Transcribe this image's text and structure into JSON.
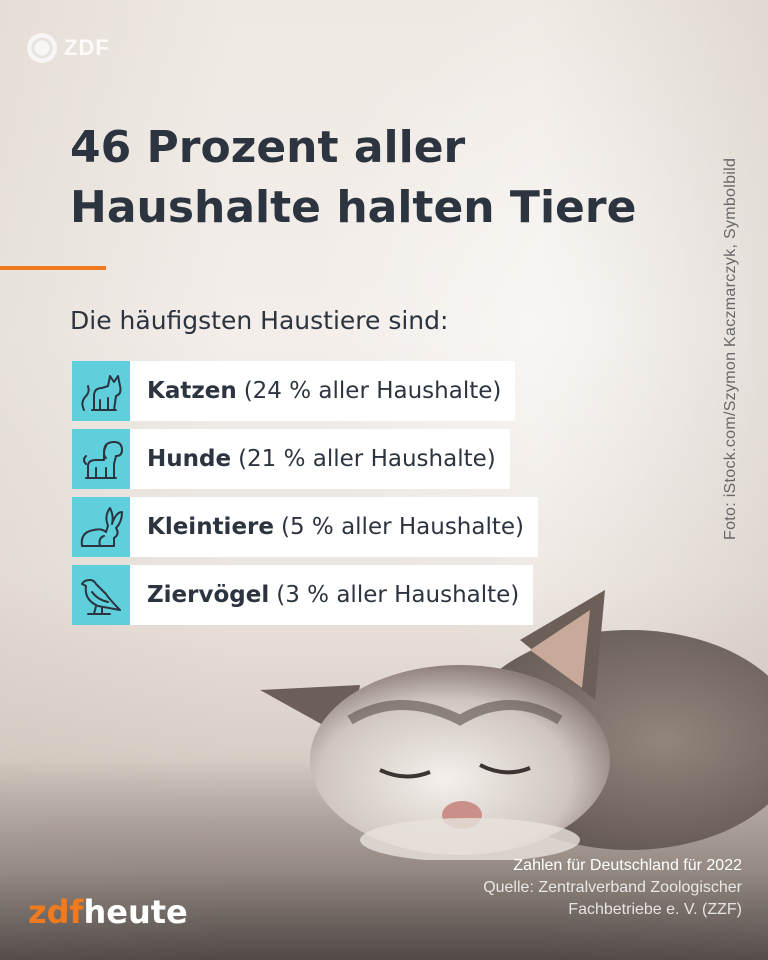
{
  "watermark": {
    "brand": "ZDF"
  },
  "headline": {
    "line1": "46 Prozent aller",
    "line2": "Haushalte halten Tiere"
  },
  "subhead": "Die häufigsten Haustiere sind:",
  "pets": [
    {
      "name": "Katzen",
      "detail": "(24 % aller Haushalte)",
      "icon": "cat-icon"
    },
    {
      "name": "Hunde",
      "detail": "(21 % aller Haushalte)",
      "icon": "dog-icon"
    },
    {
      "name": "Kleintiere",
      "detail": "(5 % aller Haushalte)",
      "icon": "rabbit-icon"
    },
    {
      "name": "Ziervögel",
      "detail": "(3 % aller Haushalte)",
      "icon": "bird-icon"
    }
  ],
  "photo_credit": "Foto: iStock.com/Szymon Kaczmarczyk, Symbolbild",
  "footer": {
    "logo_part1": "zdf",
    "logo_part2": "heute",
    "source_title": "Zahlen für Deutschland für 2022",
    "source_line1": "Quelle: Zentralverband Zoologischer",
    "source_line2": "Fachbetriebe e. V. (ZZF)"
  },
  "colors": {
    "accent": "#f07a1e",
    "icon_bg": "#5fcfdc",
    "text": "#2c3440"
  }
}
